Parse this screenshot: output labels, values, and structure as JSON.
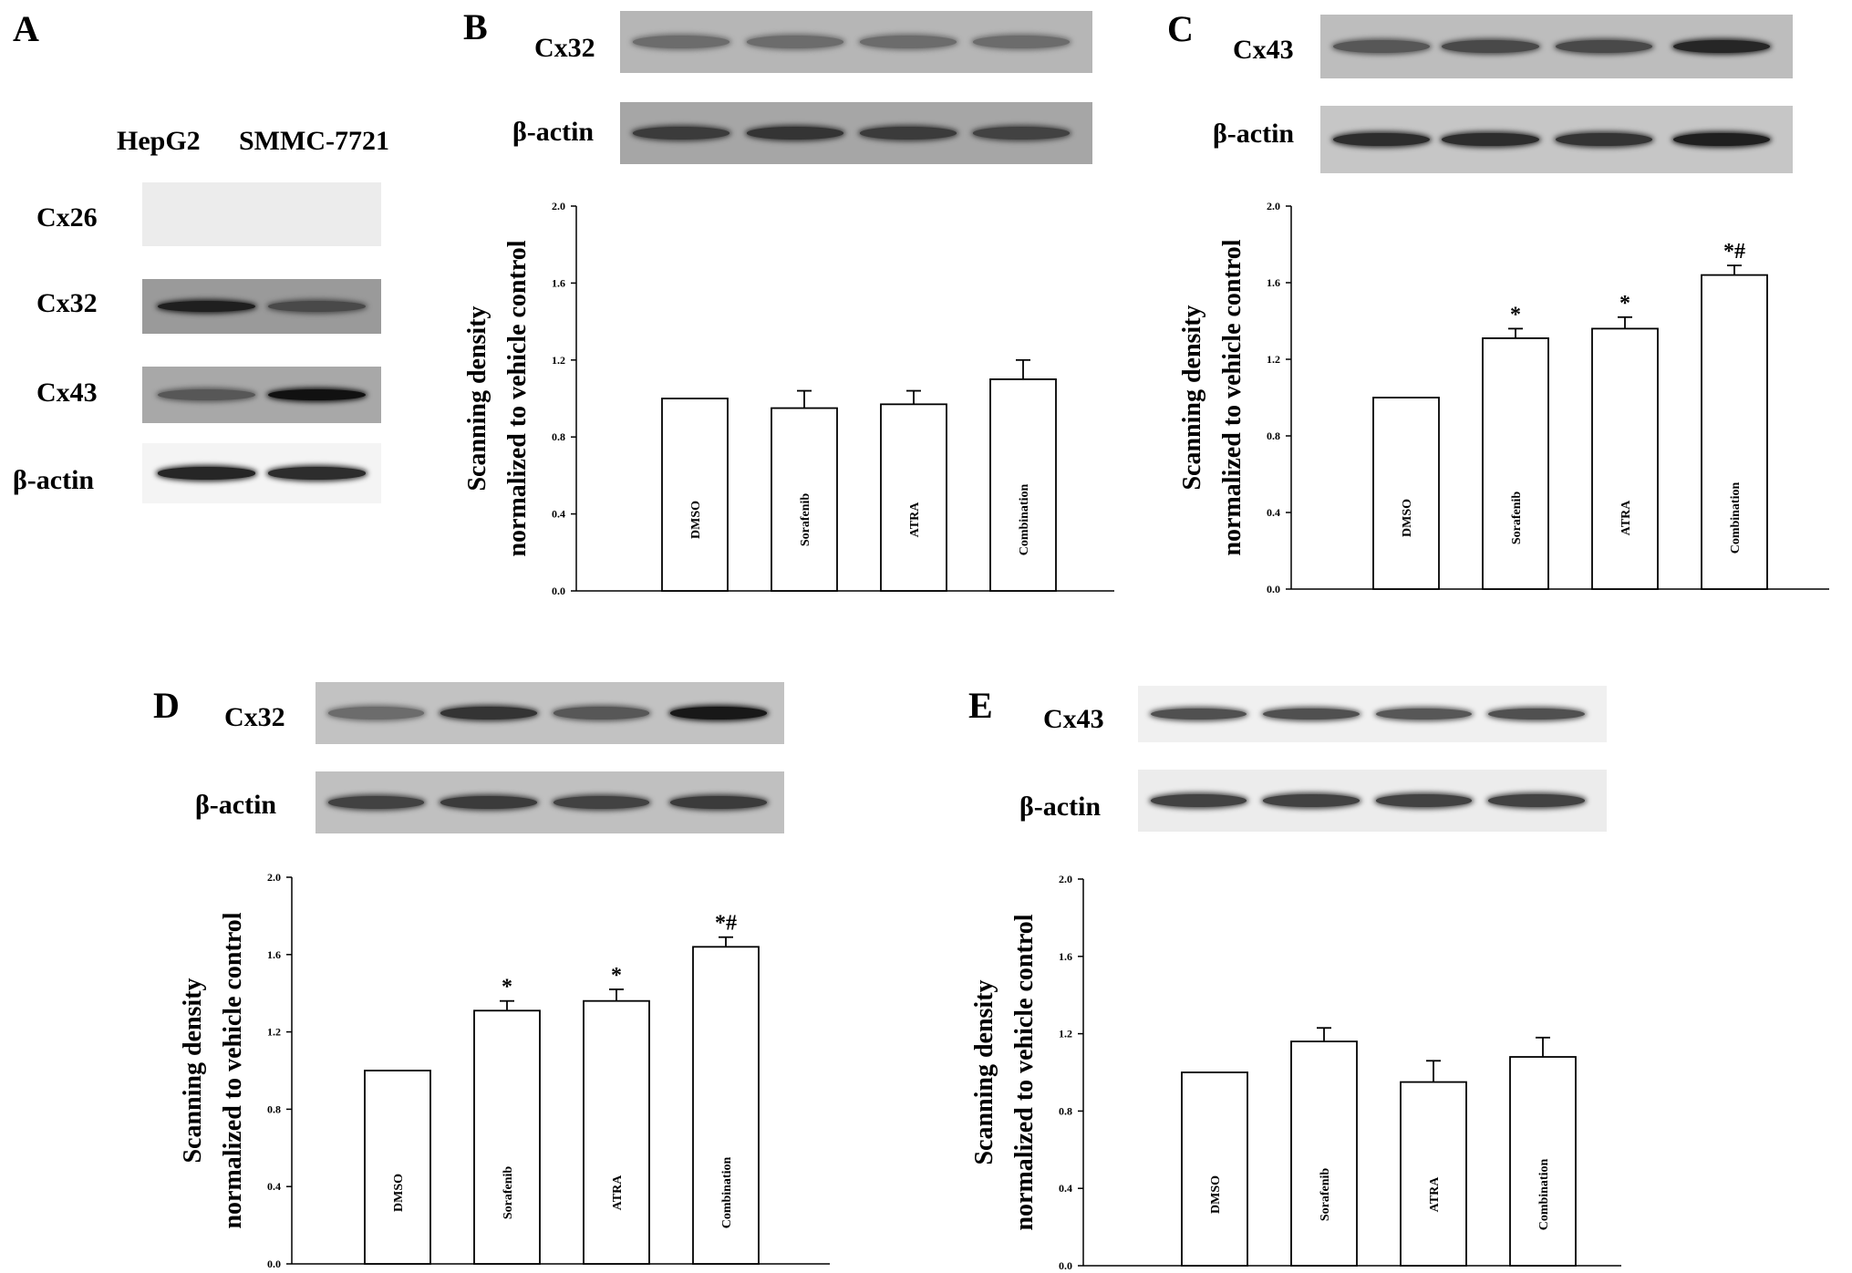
{
  "panels": [
    {
      "letter": "A",
      "blot": {
        "column_labels": [
          "HepG2",
          "SMMC-7721"
        ],
        "rows": [
          {
            "label": "Cx26",
            "band_intensity": [
              0,
              0
            ]
          },
          {
            "label": "Cx32",
            "band_intensity": [
              0.85,
              0.55
            ]
          },
          {
            "label": "Cx43",
            "band_intensity": [
              0.45,
              0.95
            ]
          },
          {
            "label": "β-actin",
            "band_intensity": [
              0.8,
              0.75
            ]
          }
        ]
      }
    },
    {
      "letter": "B",
      "blot": {
        "rows": [
          {
            "label": "Cx32",
            "band_intensity": [
              0.3,
              0.3,
              0.3,
              0.3
            ]
          },
          {
            "label": "β-actin",
            "band_intensity": [
              0.65,
              0.7,
              0.65,
              0.6
            ]
          }
        ]
      }
    },
    {
      "letter": "C",
      "blot": {
        "rows": [
          {
            "label": "Cx43",
            "band_intensity": [
              0.45,
              0.55,
              0.55,
              0.8
            ]
          },
          {
            "label": "β-actin",
            "band_intensity": [
              0.75,
              0.75,
              0.7,
              0.85
            ]
          }
        ]
      }
    },
    {
      "letter": "D",
      "blot": {
        "rows": [
          {
            "label": "Cx32",
            "band_intensity": [
              0.3,
              0.7,
              0.45,
              0.9
            ]
          },
          {
            "label": "β-actin",
            "band_intensity": [
              0.6,
              0.65,
              0.6,
              0.65
            ]
          }
        ]
      }
    },
    {
      "letter": "E",
      "blot": {
        "rows": [
          {
            "label": "Cx43",
            "band_intensity": [
              0.5,
              0.5,
              0.45,
              0.5
            ]
          },
          {
            "label": "β-actin",
            "band_intensity": [
              0.6,
              0.6,
              0.6,
              0.6
            ]
          }
        ]
      }
    }
  ],
  "chart_data": [
    {
      "panel": "B",
      "type": "bar",
      "categories": [
        "DMSO",
        "Sorafenib",
        "ATRA",
        "Combination"
      ],
      "values": [
        1.0,
        0.95,
        0.97,
        1.1
      ],
      "errors": [
        0,
        0.09,
        0.07,
        0.1
      ],
      "annotations": [
        "",
        "",
        "",
        ""
      ],
      "ylabel": [
        "Scanning density",
        "normalized to vehicle control"
      ],
      "ylim": [
        0,
        2.0
      ],
      "yticks": [
        "0.0",
        "0.4",
        "0.8",
        "1.2",
        "1.6",
        "2.0"
      ]
    },
    {
      "panel": "C",
      "type": "bar",
      "categories": [
        "DMSO",
        "Sorafenib",
        "ATRA",
        "Combination"
      ],
      "values": [
        1.0,
        1.31,
        1.36,
        1.64
      ],
      "errors": [
        0,
        0.05,
        0.06,
        0.05
      ],
      "annotations": [
        "",
        "*",
        "*",
        "*#"
      ],
      "ylabel": [
        "Scanning density",
        "normalized to vehicle control"
      ],
      "ylim": [
        0,
        2.0
      ],
      "yticks": [
        "0.0",
        "0.4",
        "0.8",
        "1.2",
        "1.6",
        "2.0"
      ]
    },
    {
      "panel": "D",
      "type": "bar",
      "categories": [
        "DMSO",
        "Sorafenib",
        "ATRA",
        "Combination"
      ],
      "values": [
        1.0,
        1.31,
        1.36,
        1.64
      ],
      "errors": [
        0,
        0.05,
        0.06,
        0.05
      ],
      "annotations": [
        "",
        "*",
        "*",
        "*#"
      ],
      "ylabel": [
        "Scanning density",
        "normalized to vehicle control"
      ],
      "ylim": [
        0,
        2.0
      ],
      "yticks": [
        "0.0",
        "0.4",
        "0.8",
        "1.2",
        "1.6",
        "2.0"
      ]
    },
    {
      "panel": "E",
      "type": "bar",
      "categories": [
        "DMSO",
        "Sorafenib",
        "ATRA",
        "Combination"
      ],
      "values": [
        1.0,
        1.16,
        0.95,
        1.08
      ],
      "errors": [
        0,
        0.07,
        0.11,
        0.1
      ],
      "annotations": [
        "",
        "",
        "",
        ""
      ],
      "ylabel": [
        "Scanning density",
        "normalized to vehicle control"
      ],
      "ylim": [
        0,
        2.0
      ],
      "yticks": [
        "0.0",
        "0.4",
        "0.8",
        "1.2",
        "1.6",
        "2.0"
      ]
    }
  ]
}
